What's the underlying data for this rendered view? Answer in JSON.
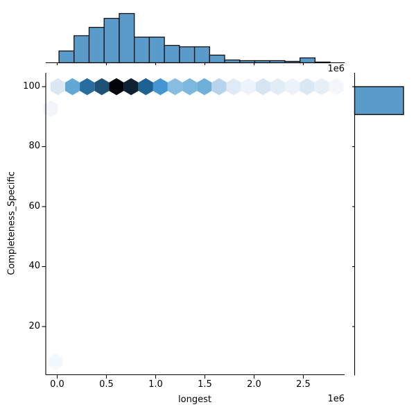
{
  "figure": {
    "background": "#ffffff",
    "bar_fill": "#5a9bc9",
    "bar_edge": "#0e0e0e",
    "axis_color": "#000000"
  },
  "axes": {
    "x": {
      "label": "longest",
      "offset_label": "1e6",
      "tick_labels": [
        "0.0",
        "0.5",
        "1.0",
        "1.5",
        "2.0",
        "2.5"
      ]
    },
    "y": {
      "label": "Completeness_Specific",
      "tick_labels": [
        "100",
        "80",
        "60",
        "40",
        "20"
      ]
    },
    "top_offset_label": "1e6"
  },
  "chart_data": [
    {
      "id": "top-marginal-histogram",
      "type": "bar",
      "role": "marginal distribution of longest (x)",
      "x_units": "1e6",
      "bin_start": 0.018,
      "bin_width": 0.153,
      "values": [
        17,
        39,
        51,
        64,
        71,
        37,
        37,
        25,
        23,
        23,
        11,
        4,
        3,
        3,
        3,
        2,
        7,
        1
      ]
    },
    {
      "id": "joint-hexbin",
      "type": "heatmap",
      "subtype": "hexbin",
      "xlabel": "longest",
      "ylabel": "Completeness_Specific",
      "x_units": "1e6",
      "xlim": [
        -0.12,
        2.92
      ],
      "ylim": [
        3.9,
        104.6
      ],
      "xticks": [
        0.0,
        0.5,
        1.0,
        1.5,
        2.0,
        2.5
      ],
      "yticks": [
        100,
        80,
        60,
        40,
        20
      ],
      "hex_width_x": 0.149,
      "points": [
        {
          "x": 0.006,
          "y": 100,
          "color": "#dbe8f4"
        },
        {
          "x": 0.155,
          "y": 100,
          "color": "#61a8d7"
        },
        {
          "x": 0.304,
          "y": 100,
          "color": "#276e9e"
        },
        {
          "x": 0.453,
          "y": 100,
          "color": "#1d5176"
        },
        {
          "x": 0.602,
          "y": 100,
          "color": "#010409"
        },
        {
          "x": 0.751,
          "y": 100,
          "color": "#0d2233"
        },
        {
          "x": 0.9,
          "y": 100,
          "color": "#1d6092"
        },
        {
          "x": 1.048,
          "y": 100,
          "color": "#4296d3"
        },
        {
          "x": 1.197,
          "y": 100,
          "color": "#87bde1"
        },
        {
          "x": 1.346,
          "y": 100,
          "color": "#7cb7de"
        },
        {
          "x": 1.495,
          "y": 100,
          "color": "#6fb0da"
        },
        {
          "x": 1.644,
          "y": 100,
          "color": "#b7d4ec"
        },
        {
          "x": 1.793,
          "y": 100,
          "color": "#dfeaf6"
        },
        {
          "x": 1.942,
          "y": 100,
          "color": "#edf3fa"
        },
        {
          "x": 2.091,
          "y": 100,
          "color": "#d7e5f2"
        },
        {
          "x": 2.24,
          "y": 100,
          "color": "#e2ecf7"
        },
        {
          "x": 2.388,
          "y": 100,
          "color": "#ecf2f9"
        },
        {
          "x": 2.537,
          "y": 100,
          "color": "#dbe8f4"
        },
        {
          "x": 2.686,
          "y": 100,
          "color": "#e6eff8"
        },
        {
          "x": 2.835,
          "y": 100,
          "color": "#f3f7fc"
        },
        {
          "x": -0.068,
          "y": 92.6,
          "color": "#f2f6fa"
        },
        {
          "x": -0.018,
          "y": 8.3,
          "color": "#f4f7fb"
        }
      ]
    },
    {
      "id": "right-marginal-histogram",
      "type": "bar",
      "role": "marginal distribution of Completeness_Specific (y)",
      "bars": [
        {
          "from": 90.7,
          "to": 100,
          "fraction": 1.0
        }
      ]
    }
  ]
}
